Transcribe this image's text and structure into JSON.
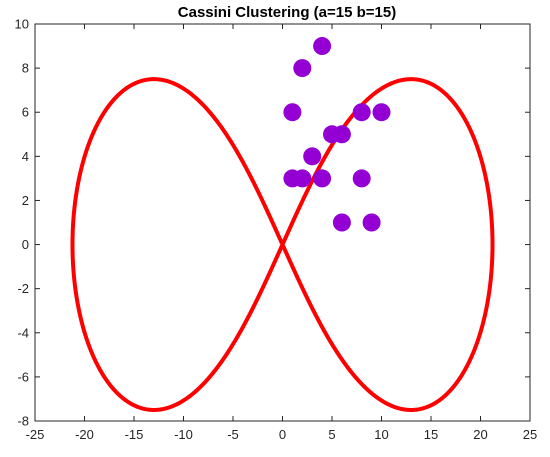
{
  "chart_data": {
    "type": "scatter",
    "title": "Cassini Clustering (a=15 b=15)",
    "xlabel": "",
    "ylabel": "",
    "xlim": [
      -25,
      25
    ],
    "ylim": [
      -8,
      10
    ],
    "xticks": [
      -25,
      -20,
      -15,
      -10,
      -5,
      0,
      5,
      10,
      15,
      20,
      25
    ],
    "yticks": [
      -8,
      -6,
      -4,
      -2,
      0,
      2,
      4,
      6,
      8,
      10
    ],
    "grid": false,
    "legend": "none",
    "curve": {
      "type": "cassini-oval",
      "a": 15,
      "b": 15,
      "color": "#ff0000"
    },
    "points": {
      "color": "#9400d3",
      "x": [
        4,
        2,
        1,
        8,
        10,
        5,
        6,
        3,
        1,
        2,
        4,
        8,
        6,
        9
      ],
      "y": [
        9,
        8,
        6,
        6,
        6,
        5,
        5,
        4,
        3,
        3,
        3,
        3,
        1,
        1
      ]
    }
  }
}
